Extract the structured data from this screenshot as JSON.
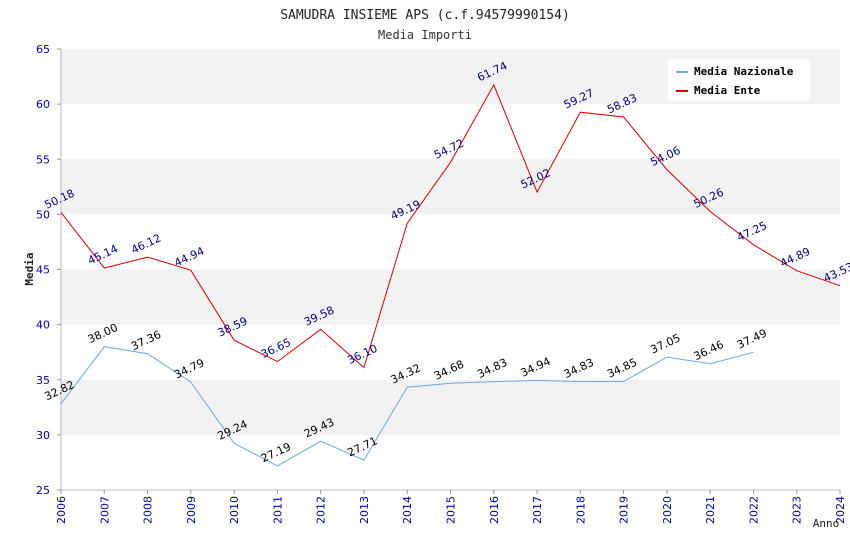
{
  "chart_data": {
    "type": "line",
    "title": "SAMUDRA INSIEME APS (c.f.94579990154)",
    "subtitle": "Media Importi",
    "xlabel": "Anno",
    "ylabel": "Media",
    "ylim": [
      25,
      65
    ],
    "yticks": [
      "25",
      "30",
      "35",
      "40",
      "45",
      "50",
      "55",
      "60",
      "65"
    ],
    "categories": [
      "2006",
      "2007",
      "2008",
      "2009",
      "2010",
      "2011",
      "2012",
      "2013",
      "2014",
      "2015",
      "2016",
      "2017",
      "2018",
      "2019",
      "2020",
      "2021",
      "2022",
      "2023",
      "2024"
    ],
    "legend_position": "top-right",
    "grid": "alternating horizontal bands",
    "series": [
      {
        "name": "Media Nazionale",
        "color": "#6aa8e0",
        "label_color": "#000000",
        "values": [
          32.82,
          38.0,
          37.36,
          34.79,
          29.24,
          27.19,
          29.43,
          27.71,
          34.32,
          34.68,
          34.83,
          34.94,
          34.83,
          34.85,
          37.05,
          36.46,
          37.49,
          null,
          null
        ],
        "labels": [
          "32.82",
          "38.00",
          "37.36",
          "34.79",
          "29.24",
          "27.19",
          "29.43",
          "27.71",
          "34.32",
          "34.68",
          "34.83",
          "34.94",
          "34.83",
          "34.85",
          "37.05",
          "36.46",
          "37.49",
          null,
          null
        ]
      },
      {
        "name": "Media Ente",
        "color": "#dd0000",
        "label_color": "#000080",
        "values": [
          50.18,
          45.14,
          46.12,
          44.94,
          38.59,
          36.65,
          39.58,
          36.1,
          49.19,
          54.72,
          61.74,
          52.02,
          59.27,
          58.83,
          54.06,
          50.26,
          47.25,
          44.89,
          43.53
        ],
        "labels": [
          "50.18",
          "45.14",
          "46.12",
          "44.94",
          "38.59",
          "36.65",
          "39.58",
          "36.10",
          "49.19",
          "54.72",
          "61.74",
          "52.02",
          "59.27",
          "58.83",
          "54.06",
          "50.26",
          "47.25",
          "44.89",
          "43.53"
        ]
      }
    ]
  }
}
